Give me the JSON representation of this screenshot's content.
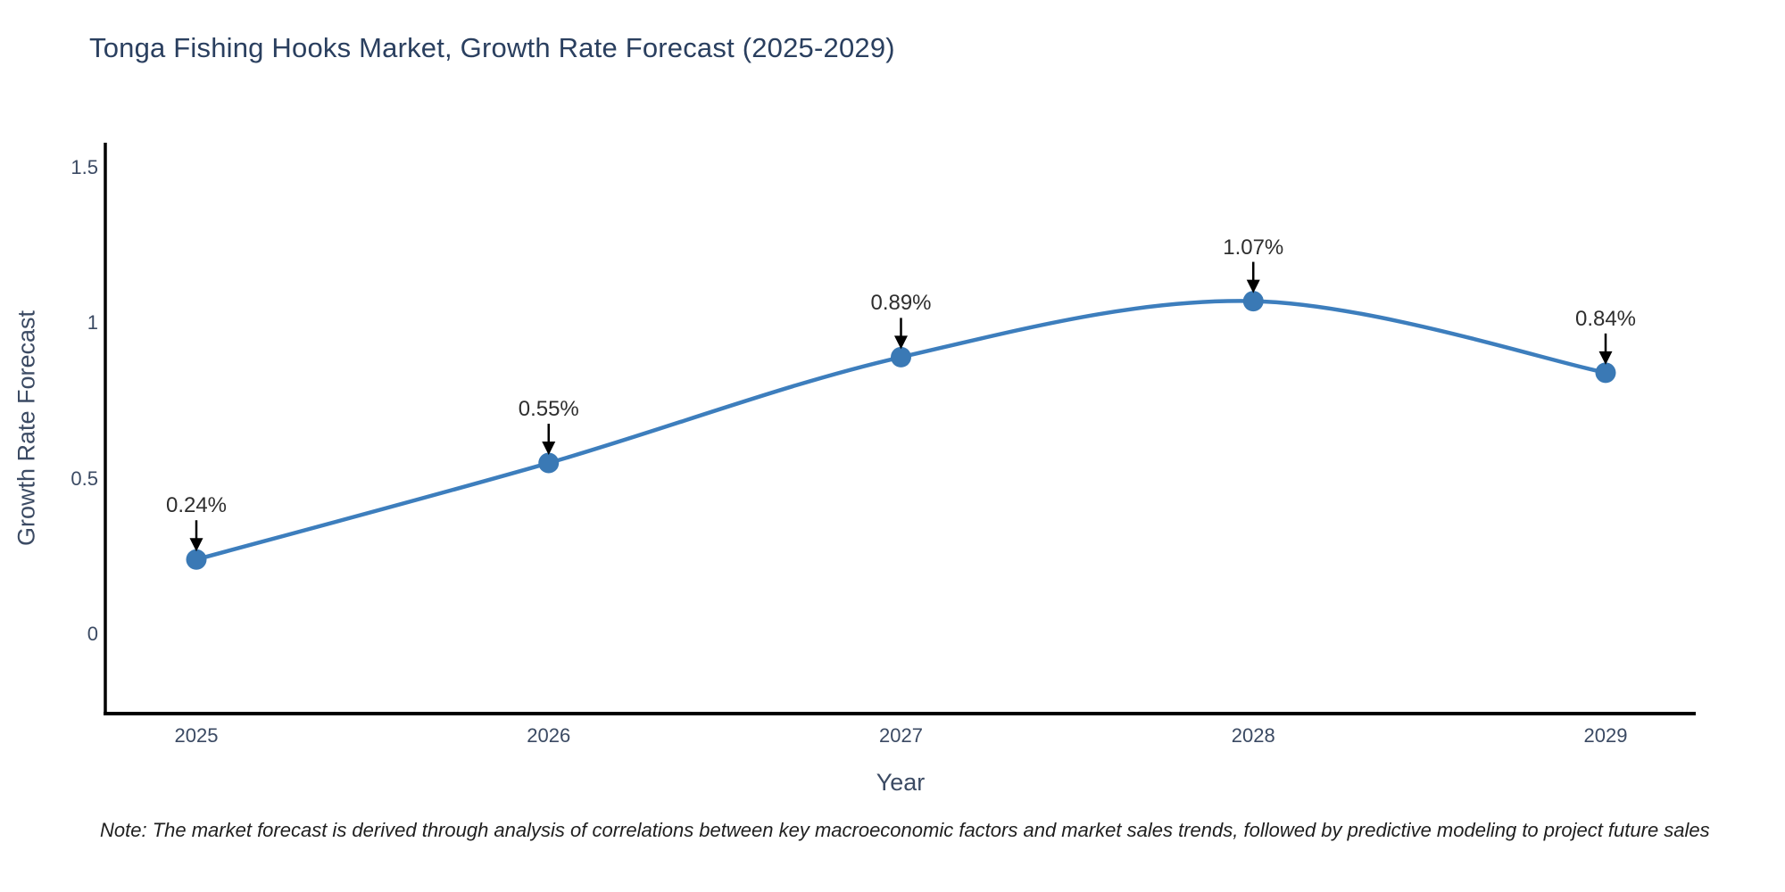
{
  "title": "Tonga Fishing Hooks Market, Growth Rate Forecast (2025-2029)",
  "note": "Note: The market forecast is derived through analysis of correlations between key macroeconomic factors and market sales trends, followed by predictive modeling to project future sales",
  "chart_data": {
    "type": "line",
    "title": "Tonga Fishing Hooks Market, Growth Rate Forecast (2025-2029)",
    "xlabel": "Year",
    "ylabel": "Growth Rate Forecast",
    "x": [
      2025,
      2026,
      2027,
      2028,
      2029
    ],
    "series": [
      {
        "name": "Growth Rate Forecast",
        "values": [
          0.24,
          0.55,
          0.89,
          1.07,
          0.84
        ]
      }
    ],
    "point_labels": [
      "0.24%",
      "0.55%",
      "0.89%",
      "1.07%",
      "0.84%"
    ],
    "yticks": [
      0,
      0.5,
      1,
      1.5
    ],
    "ylim": [
      -0.26,
      1.58
    ],
    "line_shape": "spline",
    "grid": false,
    "legend": "none",
    "colors": {
      "line": "#3d7ebd",
      "marker": "#3a79b5",
      "arrow": "#000000",
      "axis": "#000000",
      "title_text": "#2a3f5f",
      "tick_text": "#3b4a63",
      "annotation_text": "#2e2e2e",
      "background": "#ffffff"
    }
  }
}
